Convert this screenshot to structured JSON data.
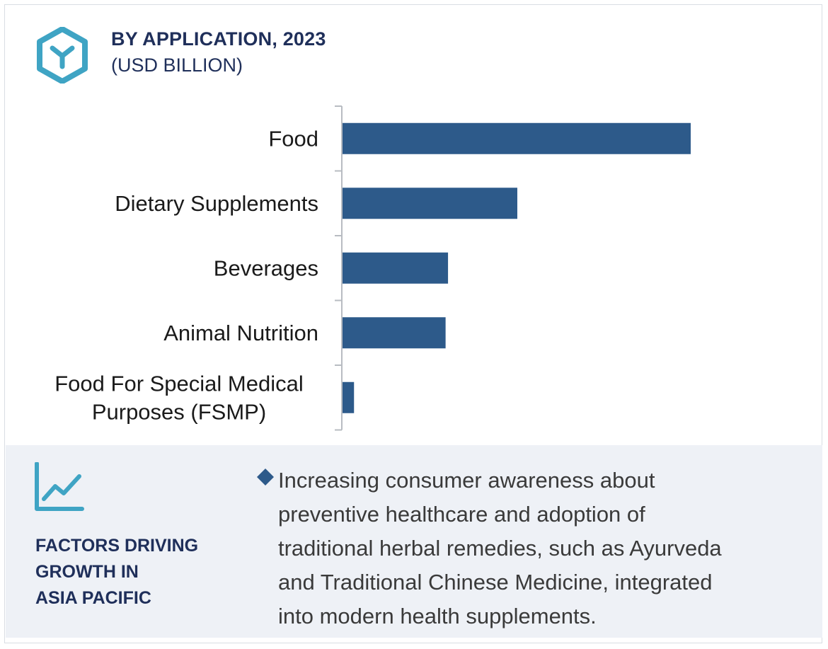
{
  "header": {
    "title": "BY APPLICATION, 2023",
    "subtitle": "(USD BILLION)"
  },
  "icons": {
    "logo": "hexagon-y-logo-icon",
    "trend": "line-chart-icon",
    "bullet": "diamond-bullet-icon"
  },
  "colors": {
    "bar": "#2d5a8a",
    "heading": "#1f2f5a",
    "accent": "#3fa4c4",
    "panel_bg": "#eef1f6",
    "axis": "#b8bcc2"
  },
  "chart_data": {
    "type": "bar",
    "orientation": "horizontal",
    "categories": [
      "Food",
      "Dietary Supplements",
      "Beverages",
      "Animal Nutrition",
      "Food For Special Medical Purposes (FSMP)"
    ],
    "category_lines": [
      [
        "Food"
      ],
      [
        "Dietary Supplements"
      ],
      [
        "Beverages"
      ],
      [
        "Animal Nutrition"
      ],
      [
        "Food For Special Medical",
        "Purposes (FSMP)"
      ]
    ],
    "values": [
      100,
      50.2,
      30.3,
      29.6,
      3.3
    ],
    "value_note": "relative bar lengths (no value axis shown)",
    "grid": false
  },
  "factors": {
    "heading_lines": [
      "FACTORS DRIVING",
      "GROWTH IN",
      "ASIA PACIFIC"
    ],
    "bullet_lines": [
      "Increasing consumer awareness about",
      "preventive healthcare and adoption of",
      "traditional herbal remedies, such as Ayurveda",
      "and Traditional Chinese Medicine, integrated",
      "into modern health supplements."
    ]
  }
}
